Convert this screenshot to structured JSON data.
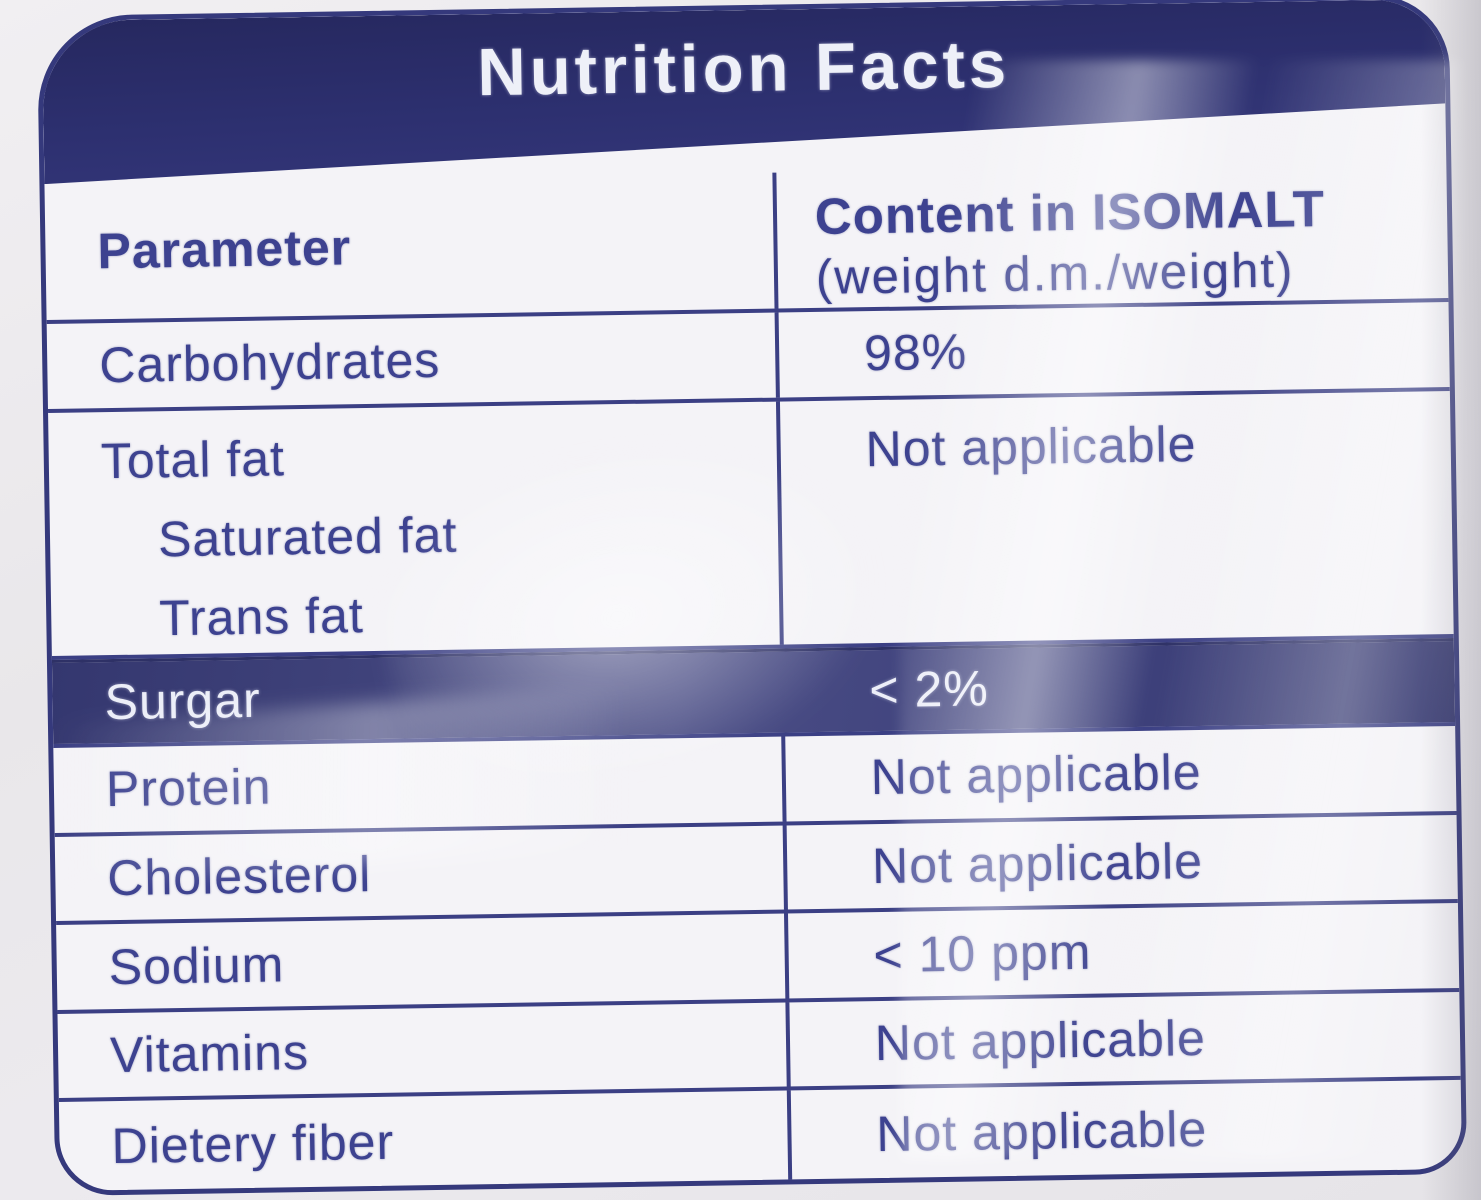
{
  "label": {
    "title": "Nutrition Facts",
    "columns": {
      "parameter": "Parameter",
      "content_line1": "Content in ISOMALT",
      "content_line2": "(weight d.m./weight)"
    },
    "rows": [
      {
        "name": "Carbohydrates",
        "value": "98%"
      },
      {
        "name": "Total fat",
        "sub": [
          "Saturated fat",
          "Trans fat"
        ],
        "value": "Not applicable"
      },
      {
        "name": "Surgar",
        "value": "< 2%",
        "highlighted": true
      },
      {
        "name": "Protein",
        "value": "Not applicable"
      },
      {
        "name": "Cholesterol",
        "value": "Not applicable"
      },
      {
        "name": "Sodium",
        "value": "< 10 ppm"
      },
      {
        "name": "Vitamins",
        "value": "Not applicable"
      },
      {
        "name": "Dietery fiber",
        "value": "Not applicable"
      }
    ],
    "colors": {
      "navy_banner": "#2d3070",
      "navy_highlight_band": "#3c3f7a",
      "text_indigo": "#3d4290",
      "label_background": "#f4f3f7",
      "package_background": "#e9e7ea",
      "title_text": "#eef0f8"
    }
  }
}
